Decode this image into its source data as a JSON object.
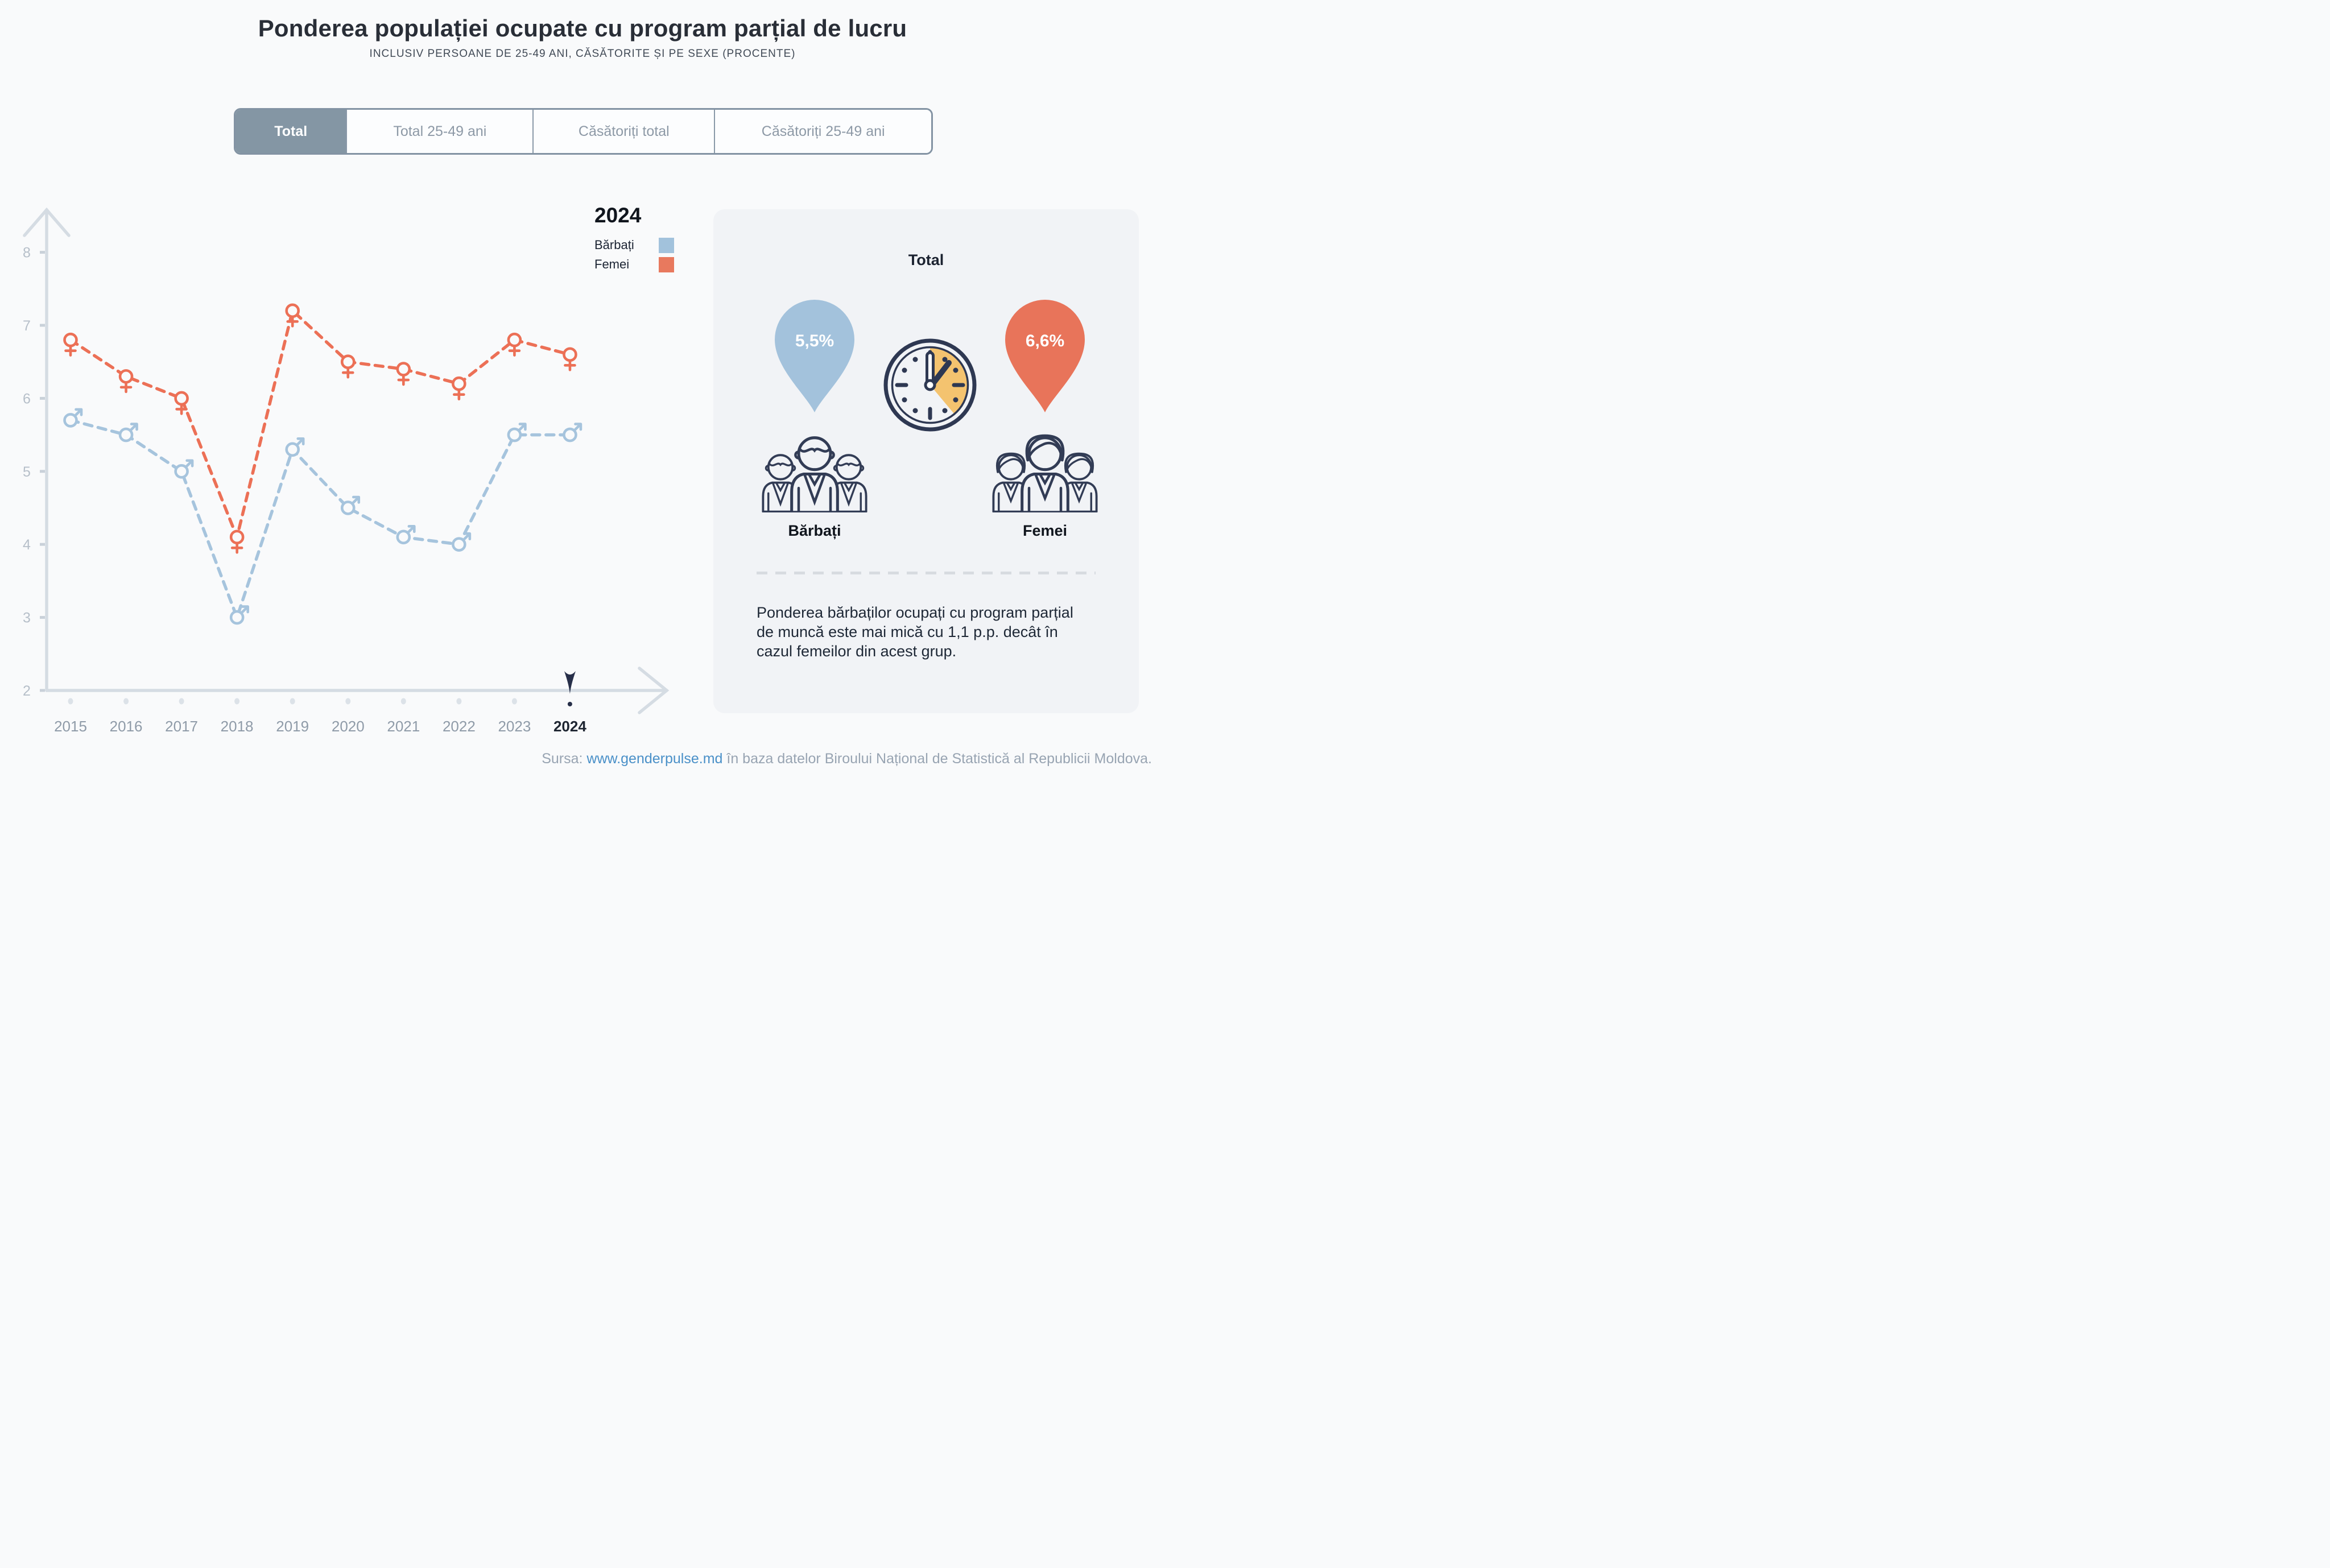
{
  "header": {
    "title": "Ponderea populației ocupate cu program parțial de lucru",
    "subtitle": "INCLUSIV PERSOANE DE 25-49 ANI, CĂSĂTORITE ȘI PE SEXE (PROCENTE)"
  },
  "tabs": [
    {
      "label": "Total",
      "active": true
    },
    {
      "label": "Total 25-49 ani",
      "active": false
    },
    {
      "label": "Căsătoriți total",
      "active": false
    },
    {
      "label": "Căsătoriți 25-49 ani",
      "active": false
    }
  ],
  "legend": {
    "year": "2024",
    "items": [
      {
        "label": "Bărbați",
        "color": "#a2c2dc"
      },
      {
        "label": "Femei",
        "color": "#e8795e"
      }
    ]
  },
  "chart_data": {
    "type": "line",
    "title": "Ponderea populației ocupate cu program parțial de lucru",
    "categories": [
      "2015",
      "2016",
      "2017",
      "2018",
      "2019",
      "2020",
      "2021",
      "2022",
      "2023",
      "2024"
    ],
    "series": [
      {
        "name": "Femei",
        "marker": "female",
        "color": "#ec7056",
        "values": [
          6.8,
          6.3,
          6.0,
          4.1,
          7.2,
          6.5,
          6.4,
          6.2,
          6.8,
          6.6
        ]
      },
      {
        "name": "Bărbați",
        "marker": "male",
        "color": "#a6c4dd",
        "values": [
          5.7,
          5.5,
          5.0,
          3.0,
          5.3,
          4.5,
          4.1,
          4.0,
          5.5,
          5.5
        ]
      }
    ],
    "ylim": [
      2,
      8
    ],
    "y_ticks": [
      8,
      7,
      6,
      5,
      4,
      3,
      2
    ],
    "grid": false,
    "line_style": "dashed",
    "legend_position": "top-right",
    "highlight_category": "2024",
    "bg": "#f9fafb"
  },
  "panel": {
    "heading": "Total",
    "men": {
      "value": "5,5%",
      "label": "Bărbați",
      "color": "#a3c2dc"
    },
    "women": {
      "value": "6,6%",
      "label": "Femei",
      "color": "#e8745a"
    },
    "note": "Ponderea bărbaților ocupați cu program parțial de muncă este mai mică cu 1,1 p.p. decât în cazul femeilor din acest grup.",
    "clock_colors": {
      "outline": "#2e3852",
      "wedge": "#f4c36f"
    }
  },
  "source": {
    "prefix": "Sursa: ",
    "link": "www.genderpulse.md",
    "suffix": " în baza datelor Biroului Național de Statistică al Republicii Moldova."
  }
}
